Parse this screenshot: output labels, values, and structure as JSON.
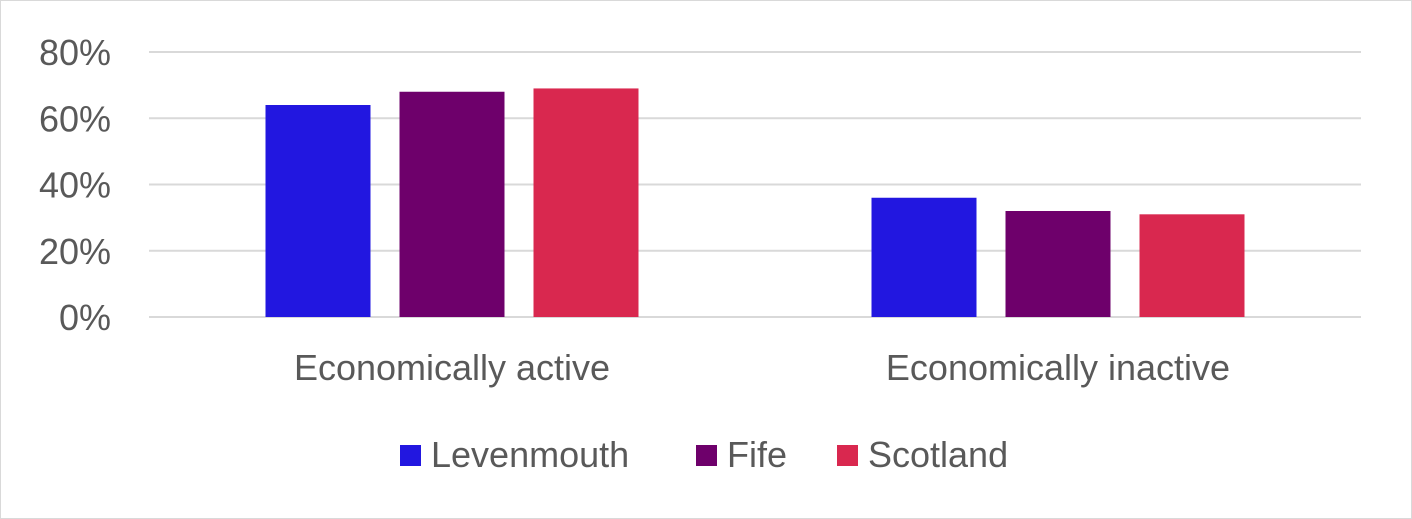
{
  "chart_data": {
    "type": "bar",
    "categories": [
      "Economically active",
      "Economically inactive"
    ],
    "series": [
      {
        "name": "Levenmouth",
        "values": [
          64,
          36
        ],
        "color": "#2217e0"
      },
      {
        "name": "Fife",
        "values": [
          68,
          32
        ],
        "color": "#6e006b"
      },
      {
        "name": "Scotland",
        "values": [
          69,
          31
        ],
        "color": "#d9284f"
      }
    ],
    "yticks": [
      "0%",
      "20%",
      "40%",
      "60%",
      "80%"
    ],
    "ylim": [
      0,
      80
    ],
    "grid": true,
    "legend_position": "bottom"
  }
}
